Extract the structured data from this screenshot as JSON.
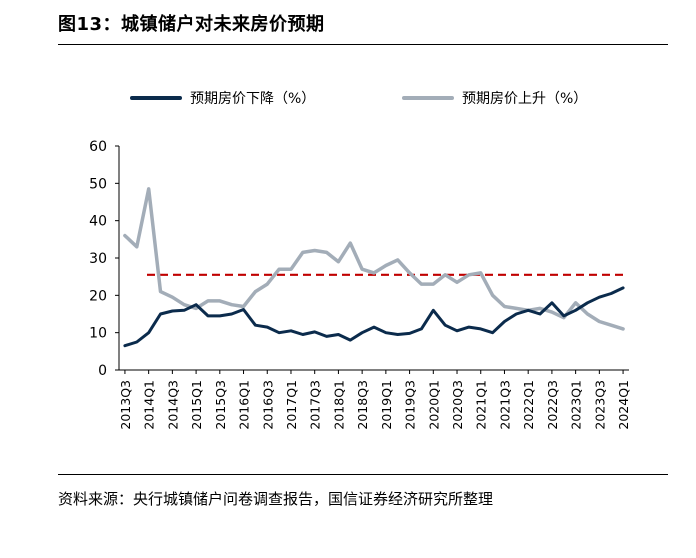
{
  "figure": {
    "title": "图13：城镇储户对未来房价预期",
    "source": "资料来源：央行城镇储户问卷调查报告，国信证券经济研究所整理"
  },
  "chart_data": {
    "type": "line",
    "title": "",
    "xlabel": "",
    "ylabel": "",
    "ylim": [
      0,
      60
    ],
    "yticks": [
      0,
      10,
      20,
      30,
      40,
      50,
      60
    ],
    "grid": false,
    "legend_position": "top",
    "reference_line": {
      "value": 25.5,
      "style": "dashed",
      "color": "#C00000"
    },
    "x": [
      "2013Q3",
      "2013Q4",
      "2014Q1",
      "2014Q2",
      "2014Q3",
      "2014Q4",
      "2015Q1",
      "2015Q2",
      "2015Q3",
      "2015Q4",
      "2016Q1",
      "2016Q2",
      "2016Q3",
      "2016Q4",
      "2017Q1",
      "2017Q2",
      "2017Q3",
      "2017Q4",
      "2018Q1",
      "2018Q2",
      "2018Q3",
      "2018Q4",
      "2019Q1",
      "2019Q2",
      "2019Q3",
      "2019Q4",
      "2020Q1",
      "2020Q2",
      "2020Q3",
      "2020Q4",
      "2021Q1",
      "2021Q2",
      "2021Q3",
      "2021Q4",
      "2022Q1",
      "2022Q2",
      "2022Q3",
      "2022Q4",
      "2023Q1",
      "2023Q2",
      "2023Q3",
      "2023Q4",
      "2024Q1"
    ],
    "xtick_labels": [
      "2013Q3",
      "2014Q1",
      "2014Q3",
      "2015Q1",
      "2015Q3",
      "2016Q1",
      "2016Q3",
      "2017Q1",
      "2017Q3",
      "2018Q1",
      "2018Q3",
      "2019Q1",
      "2019Q3",
      "2020Q1",
      "2020Q3",
      "2021Q1",
      "2021Q3",
      "2022Q1",
      "2022Q3",
      "2023Q1",
      "2023Q3",
      "2024Q1"
    ],
    "series": [
      {
        "name": "预期房价下降（%）",
        "color": "#0B2B4C",
        "values": [
          6.5,
          7.5,
          10.0,
          15.0,
          15.8,
          16.0,
          17.5,
          14.5,
          14.5,
          15.0,
          16.2,
          12.0,
          11.5,
          10.0,
          10.5,
          9.5,
          10.2,
          9.0,
          9.5,
          8.0,
          10.0,
          11.5,
          10.0,
          9.5,
          9.8,
          11.0,
          16.0,
          12.0,
          10.5,
          11.5,
          11.0,
          10.0,
          13.0,
          15.0,
          16.0,
          15.0,
          18.0,
          14.5,
          16.0,
          18.0,
          19.5,
          20.5,
          22.0
        ]
      },
      {
        "name": "预期房价上升（%）",
        "color": "#A3ADB8",
        "values": [
          36.0,
          33.0,
          48.5,
          21.0,
          19.5,
          17.5,
          16.5,
          18.5,
          18.5,
          17.5,
          17.0,
          21.0,
          23.0,
          27.0,
          27.0,
          31.5,
          32.0,
          31.5,
          29.0,
          34.0,
          27.0,
          26.0,
          28.0,
          29.5,
          26.0,
          23.0,
          23.0,
          25.5,
          23.5,
          25.5,
          26.0,
          20.0,
          17.0,
          16.5,
          16.0,
          16.5,
          15.5,
          14.0,
          18.0,
          15.0,
          13.0,
          12.0,
          11.0
        ]
      }
    ]
  }
}
